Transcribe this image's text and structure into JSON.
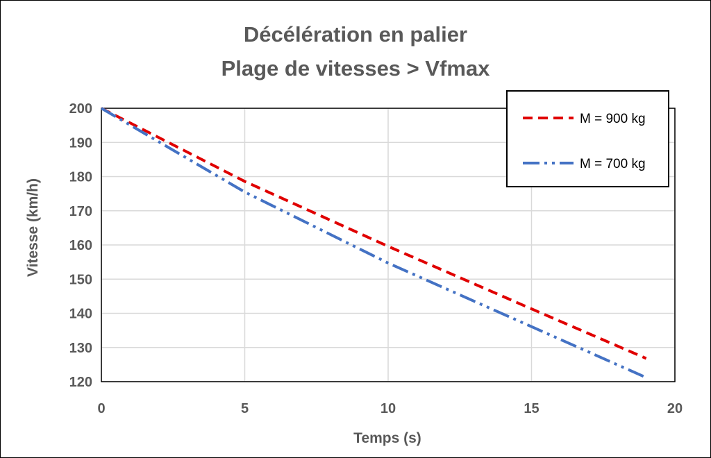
{
  "chart_data": {
    "type": "line",
    "title": [
      "Décélération en palier",
      "Plage de vitesses > Vfmax"
    ],
    "xlabel": "Temps (s)",
    "ylabel": "Vitesse (km/h)",
    "xlim": [
      0,
      20
    ],
    "ylim": [
      120,
      200
    ],
    "xticks": [
      0,
      5,
      10,
      15,
      20
    ],
    "yticks": [
      120,
      130,
      140,
      150,
      160,
      170,
      180,
      190,
      200
    ],
    "grid": true,
    "legend_position": "top-right",
    "series": [
      {
        "name": "M = 900 kg",
        "color": "#E00000",
        "dash": "dashed",
        "x": [
          0,
          5,
          10,
          15,
          19
        ],
        "y": [
          200,
          178.6,
          159.6,
          141.3,
          126.8
        ]
      },
      {
        "name": "M = 700 kg",
        "color": "#4472C4",
        "dash": "dash-dot-dot",
        "x": [
          0,
          5,
          10,
          15,
          19
        ],
        "y": [
          200,
          175.5,
          154.7,
          136.1,
          121.2
        ]
      }
    ]
  }
}
